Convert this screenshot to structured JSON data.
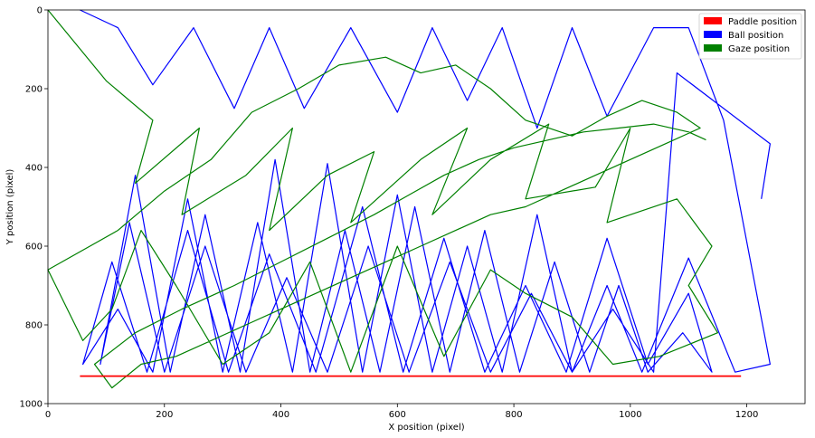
{
  "chart_data": {
    "type": "line",
    "title": "",
    "xlabel": "X position (pixel)",
    "ylabel": "Y position (pixel)",
    "xlim": [
      0,
      1300
    ],
    "ylim": [
      1000,
      0
    ],
    "y_inverted": true,
    "xticks": [
      0,
      200,
      400,
      600,
      800,
      1000,
      1200
    ],
    "yticks": [
      0,
      200,
      400,
      600,
      800,
      1000
    ],
    "grid": false,
    "legend_position": "top-right",
    "series": [
      {
        "name": "Paddle position",
        "color": "#ff0000",
        "x": [
          55,
          150,
          300,
          450,
          600,
          750,
          900,
          1050,
          1190
        ],
        "y": [
          930,
          930,
          930,
          930,
          930,
          930,
          930,
          930,
          930
        ]
      },
      {
        "name": "Ball position",
        "color": "#0000ff",
        "x": [
          55,
          120,
          180,
          250,
          320,
          380,
          440,
          520,
          600,
          660,
          720,
          780,
          840,
          900,
          960,
          1040,
          1100,
          1160,
          1240,
          1180,
          1100,
          1020,
          960,
          900,
          840,
          780,
          720,
          660,
          600,
          540,
          480,
          420,
          360,
          300,
          240,
          180,
          120,
          60,
          110,
          170,
          240,
          310,
          380,
          460,
          540,
          610,
          680,
          750,
          820,
          890,
          960,
          1030,
          1100,
          1140,
          1090,
          1030,
          980,
          930,
          870,
          810,
          750,
          690,
          630,
          570,
          510,
          450,
          390,
          330,
          270,
          210,
          150,
          90,
          140,
          200,
          270,
          340,
          410,
          480,
          550,
          620,
          690,
          760,
          830,
          900,
          970,
          1040,
          1080,
          1240,
          1225
        ],
        "y": [
          0,
          45,
          190,
          45,
          250,
          45,
          250,
          45,
          260,
          45,
          230,
          45,
          300,
          45,
          270,
          45,
          45,
          280,
          900,
          920,
          630,
          920,
          700,
          920,
          520,
          920,
          600,
          920,
          470,
          920,
          390,
          920,
          540,
          920,
          480,
          920,
          760,
          900,
          640,
          920,
          560,
          920,
          620,
          920,
          500,
          920,
          580,
          920,
          700,
          920,
          580,
          900,
          720,
          920,
          820,
          920,
          700,
          920,
          640,
          920,
          560,
          920,
          500,
          920,
          560,
          920,
          380,
          920,
          520,
          920,
          420,
          900,
          540,
          920,
          600,
          920,
          680,
          920,
          600,
          920,
          640,
          920,
          720,
          920,
          760,
          920,
          160,
          340,
          480
        ]
      },
      {
        "name": "Gaze position",
        "color": "#008000",
        "x": [
          0,
          100,
          180,
          150,
          260,
          230,
          340,
          420,
          380,
          480,
          560,
          520,
          640,
          720,
          660,
          760,
          860,
          820,
          940,
          1000,
          960,
          1080,
          1140,
          1100,
          1150,
          1050,
          970,
          900,
          820,
          760,
          680,
          600,
          520,
          450,
          380,
          300,
          220,
          160,
          110,
          60,
          0,
          120,
          200,
          280,
          350,
          430,
          500,
          580,
          640,
          700,
          760,
          820,
          900,
          960,
          1020,
          1080,
          1120,
          1060,
          1000,
          940,
          880,
          820,
          760,
          700,
          640,
          580,
          520,
          460,
          400,
          340,
          280,
          220,
          160,
          110,
          80,
          150,
          230,
          320,
          400,
          480,
          560,
          620,
          680,
          740,
          800,
          860,
          920,
          980,
          1040,
          1100,
          1130
        ],
        "y": [
          0,
          180,
          280,
          440,
          300,
          520,
          420,
          300,
          560,
          420,
          360,
          540,
          380,
          300,
          520,
          380,
          290,
          480,
          450,
          300,
          540,
          480,
          600,
          700,
          820,
          880,
          900,
          780,
          720,
          660,
          880,
          600,
          920,
          640,
          820,
          900,
          700,
          560,
          760,
          840,
          660,
          560,
          460,
          380,
          260,
          200,
          140,
          120,
          160,
          140,
          200,
          280,
          320,
          270,
          230,
          260,
          300,
          340,
          380,
          420,
          460,
          500,
          520,
          560,
          600,
          640,
          680,
          720,
          760,
          800,
          840,
          880,
          900,
          960,
          900,
          820,
          760,
          700,
          640,
          580,
          520,
          470,
          420,
          380,
          350,
          330,
          310,
          300,
          290,
          310,
          330
        ]
      }
    ]
  }
}
